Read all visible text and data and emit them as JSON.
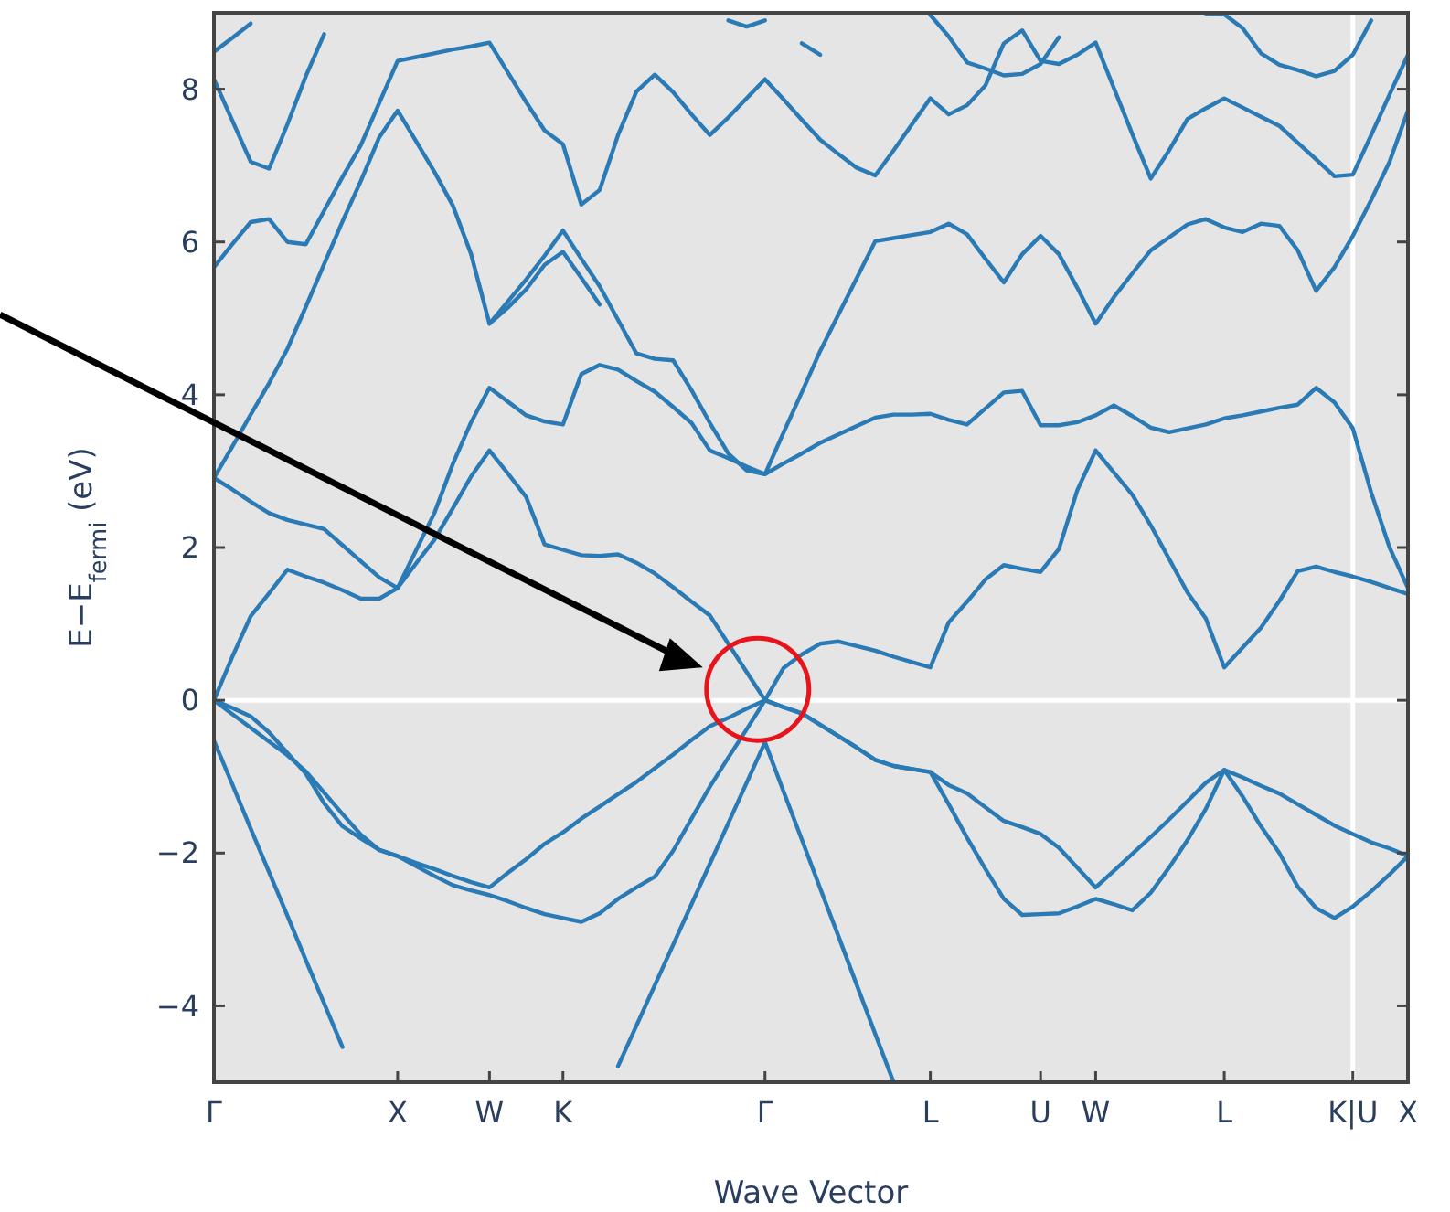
{
  "chart_data": {
    "type": "line",
    "xlabel": "Wave Vector",
    "ylabel": "E−E$_{fermi}$ (eV)",
    "ylim": [
      -5,
      9
    ],
    "categories": [
      "Γ",
      null,
      null,
      null,
      null,
      null,
      null,
      null,
      null,
      null,
      "X",
      null,
      null,
      null,
      null,
      "W",
      null,
      null,
      null,
      "K",
      null,
      null,
      null,
      null,
      null,
      null,
      null,
      null,
      null,
      null,
      "Γ",
      null,
      null,
      null,
      null,
      null,
      null,
      null,
      null,
      "L",
      null,
      null,
      null,
      null,
      null,
      "U",
      null,
      null,
      "W",
      null,
      null,
      null,
      null,
      null,
      null,
      "L",
      null,
      null,
      null,
      null,
      null,
      null,
      "K|U",
      null,
      null,
      "X"
    ],
    "yticks": [
      {
        "value": -4,
        "label": "−4"
      },
      {
        "value": -2,
        "label": "−2"
      },
      0,
      2,
      4,
      6,
      8
    ],
    "line_style": "solid",
    "marker": "none",
    "ref_lines": [
      {
        "axis": "y",
        "value": 0,
        "color": "#ffffff"
      },
      {
        "axis": "x",
        "value": "K|U",
        "color": "#ffffff"
      }
    ],
    "series": [
      {
        "color": "#2a7ab5",
        "values": [
          -0.53,
          -1.1,
          -1.68,
          -2.25,
          -2.82,
          -3.4,
          -3.97,
          -4.54,
          null,
          null,
          null,
          null,
          null,
          null,
          null,
          null,
          null,
          null,
          null,
          null,
          null,
          null,
          -4.79,
          -4.26,
          -3.73,
          -3.2,
          -2.67,
          -2.14,
          -1.61,
          -1.08,
          -0.55,
          -1.19,
          -1.82,
          -2.46,
          -3.09,
          -3.73,
          -4.37,
          -5,
          null,
          null,
          null,
          null,
          null,
          null,
          null,
          null,
          null,
          null,
          null,
          null,
          null,
          null,
          null,
          null,
          null,
          null,
          null,
          null,
          null,
          null,
          null,
          null,
          null,
          null,
          null,
          null
        ]
      },
      {
        "color": "#2a7ab5",
        "values": [
          0,
          -0.18,
          -0.36,
          -0.54,
          -0.72,
          -0.93,
          -1.21,
          -1.49,
          -1.76,
          -1.96,
          -2.04,
          -2.17,
          -2.3,
          -2.42,
          -2.49,
          -2.55,
          -2.63,
          -2.72,
          -2.8,
          -2.85,
          -2.9,
          -2.79,
          -2.6,
          -2.45,
          -2.31,
          -1.97,
          -1.55,
          -1.13,
          -0.75,
          -0.38,
          0,
          -0.09,
          -0.17,
          -0.32,
          -0.47,
          -0.62,
          -0.78,
          -0.86,
          -0.9,
          -0.94,
          -1.36,
          -1.8,
          -2.21,
          -2.6,
          -2.81,
          -2.8,
          -2.79,
          -2.7,
          -2.6,
          -2.67,
          -2.75,
          -2.52,
          -2.19,
          -1.83,
          -1.42,
          -0.91,
          -1.26,
          -1.65,
          -2,
          -2.44,
          -2.72,
          -2.85,
          -2.7,
          -2.5,
          -2.28,
          -2.04
        ]
      },
      {
        "color": "#2a7ab5",
        "values": [
          0,
          -0.1,
          -0.21,
          -0.42,
          -0.69,
          -0.96,
          -1.35,
          -1.65,
          -1.81,
          -1.96,
          -2.04,
          -2.13,
          -2.21,
          -2.3,
          -2.38,
          -2.45,
          -2.26,
          -2.08,
          -1.88,
          -1.73,
          -1.55,
          -1.39,
          -1.23,
          -1.07,
          -0.89,
          -0.71,
          -0.52,
          -0.34,
          -0.23,
          -0.11,
          0,
          -0.09,
          -0.17,
          -0.32,
          -0.47,
          -0.62,
          -0.78,
          -0.86,
          -0.9,
          -0.94,
          -1.11,
          -1.22,
          -1.4,
          -1.58,
          -1.66,
          -1.75,
          -1.93,
          -2.19,
          -2.45,
          -2.23,
          -2.01,
          -1.79,
          -1.56,
          -1.32,
          -1.08,
          -0.91,
          -1.01,
          -1.12,
          -1.22,
          -1.36,
          -1.5,
          -1.64,
          -1.75,
          -1.86,
          -1.94,
          -2.04
        ]
      },
      {
        "color": "#2a7ab5",
        "values": [
          0,
          0.57,
          1.1,
          1.4,
          1.71,
          1.62,
          1.54,
          1.44,
          1.33,
          1.33,
          1.47,
          1.79,
          2.1,
          2.51,
          2.93,
          3.27,
          2.97,
          2.66,
          2.04,
          1.97,
          1.9,
          1.89,
          1.91,
          1.8,
          1.66,
          1.48,
          1.29,
          1.11,
          0.74,
          0.37,
          0,
          0.42,
          0.6,
          0.74,
          0.77,
          0.71,
          0.65,
          0.57,
          0.5,
          0.43,
          1.02,
          1.29,
          1.58,
          1.77,
          1.72,
          1.68,
          1.98,
          2.75,
          3.27,
          2.98,
          2.69,
          2.29,
          1.85,
          1.41,
          1.07,
          0.43,
          0.69,
          0.95,
          1.3,
          1.69,
          1.75,
          1.68,
          1.62,
          1.55,
          1.47,
          1.39
        ]
      },
      {
        "color": "#2a7ab5",
        "values": [
          2.91,
          2.76,
          2.6,
          2.45,
          2.36,
          2.3,
          2.24,
          2.03,
          1.82,
          1.61,
          1.47,
          1.96,
          2.45,
          3.09,
          3.64,
          4.09,
          3.91,
          3.73,
          3.65,
          3.61,
          4.27,
          4.39,
          4.33,
          4.18,
          4.04,
          3.84,
          3.63,
          3.27,
          3.17,
          3.06,
          2.96,
          3.1,
          3.23,
          3.37,
          3.48,
          3.59,
          3.7,
          3.74,
          3.74,
          3.75,
          3.67,
          3.61,
          3.82,
          4.03,
          4.05,
          3.6,
          3.6,
          3.64,
          3.73,
          3.86,
          3.72,
          3.57,
          3.51,
          3.56,
          3.61,
          3.69,
          3.73,
          3.78,
          3.83,
          3.87,
          4.09,
          3.9,
          3.56,
          2.72,
          2,
          1.47
        ]
      },
      {
        "color": "#2a7ab5",
        "values": [
          2.91,
          3.32,
          3.74,
          4.15,
          4.6,
          5.15,
          5.71,
          6.27,
          6.8,
          7.37,
          7.72,
          7.32,
          6.92,
          6.48,
          5.84,
          4.93,
          5.22,
          5.51,
          5.82,
          6.15,
          5.78,
          5.42,
          4.98,
          4.54,
          4.47,
          4.45,
          4.06,
          3.63,
          3.23,
          3.01,
          2.96,
          3.5,
          4.03,
          4.57,
          5.05,
          5.53,
          6.01,
          6.05,
          6.09,
          6.13,
          6.24,
          6.1,
          5.78,
          5.47,
          5.84,
          6.08,
          5.84,
          5.4,
          4.93,
          5.28,
          5.59,
          5.89,
          6.06,
          6.23,
          6.3,
          6.19,
          6.13,
          6.24,
          6.21,
          5.89,
          5.36,
          5.67,
          6.08,
          6.55,
          7.05,
          7.72
        ]
      },
      {
        "color": "#2a7ab5",
        "values": [
          null,
          null,
          null,
          null,
          null,
          null,
          null,
          null,
          null,
          null,
          null,
          null,
          null,
          null,
          null,
          4.93,
          5.14,
          5.38,
          5.7,
          5.87,
          5.53,
          5.18,
          null,
          null,
          null,
          null,
          null,
          null,
          null,
          null,
          null,
          null,
          null,
          null,
          null,
          null,
          null,
          null,
          null,
          null,
          null,
          null,
          null,
          null,
          null,
          null,
          null,
          null,
          null,
          null,
          null,
          null,
          null,
          null,
          null,
          null,
          null,
          null,
          null,
          null,
          null,
          null,
          null,
          null,
          null,
          null
        ]
      },
      {
        "color": "#2a7ab5",
        "values": [
          8.13,
          7.59,
          7.05,
          6.96,
          7.54,
          8.17,
          8.72,
          null,
          null,
          null,
          null,
          null,
          null,
          null,
          null,
          null,
          null,
          null,
          null,
          null,
          null,
          null,
          null,
          null,
          null,
          null,
          null,
          null,
          null,
          null,
          null,
          null,
          null,
          null,
          null,
          null,
          null,
          null,
          null,
          null,
          null,
          null,
          null,
          null,
          null,
          null,
          null,
          null,
          null,
          null,
          null,
          null,
          null,
          null,
          null,
          null,
          null,
          null,
          null,
          null,
          null,
          null,
          null,
          null,
          null,
          null
        ]
      },
      {
        "color": "#2a7ab5",
        "values": [
          5.67,
          5.97,
          6.26,
          6.3,
          6,
          5.97,
          6.41,
          6.85,
          7.27,
          7.82,
          8.37,
          8.42,
          8.47,
          8.52,
          8.56,
          8.61,
          8.22,
          7.83,
          7.46,
          7.28,
          6.49,
          6.68,
          7.4,
          7.97,
          8.19,
          7.96,
          7.67,
          7.4,
          7.63,
          7.88,
          8.13,
          7.87,
          7.6,
          7.34,
          7.15,
          6.97,
          6.87,
          7.2,
          7.54,
          7.88,
          7.67,
          7.79,
          8.05,
          8.6,
          8.77,
          8.37,
          8.33,
          8.45,
          8.61,
          8.01,
          7.41,
          6.83,
          7.2,
          7.61,
          7.75,
          7.88,
          7.76,
          7.64,
          7.52,
          7.3,
          7.08,
          6.86,
          6.88,
          7.4,
          7.93,
          8.45
        ]
      },
      {
        "color": "#2a7ab5",
        "values": [
          8.49,
          8.67,
          8.86,
          null,
          null,
          null,
          null,
          null,
          null,
          null,
          null,
          null,
          null,
          null,
          null,
          null,
          null,
          null,
          null,
          null,
          null,
          null,
          null,
          null,
          null,
          null,
          null,
          null,
          null,
          null,
          null,
          null,
          null,
          null,
          null,
          null,
          null,
          null,
          null,
          null,
          null,
          null,
          null,
          null,
          null,
          null,
          null,
          null,
          null,
          null,
          null,
          null,
          null,
          null,
          null,
          null,
          null,
          null,
          null,
          null,
          null,
          null,
          null,
          null,
          null,
          null
        ]
      },
      {
        "color": "#2a7ab5",
        "values": [
          null,
          null,
          null,
          null,
          null,
          null,
          null,
          null,
          null,
          null,
          null,
          null,
          null,
          null,
          null,
          null,
          null,
          null,
          null,
          null,
          null,
          null,
          null,
          null,
          null,
          null,
          null,
          null,
          8.9,
          8.82,
          8.9,
          null,
          8.6,
          8.45,
          null,
          null,
          null,
          null,
          null,
          8.97,
          8.69,
          8.35,
          8.27,
          8.18,
          8.2,
          8.33,
          8.68,
          null,
          null,
          null,
          null,
          null,
          null,
          null,
          8.99,
          8.98,
          8.8,
          8.47,
          8.32,
          8.25,
          8.17,
          8.24,
          8.45,
          8.9,
          null,
          null
        ]
      }
    ]
  }
}
